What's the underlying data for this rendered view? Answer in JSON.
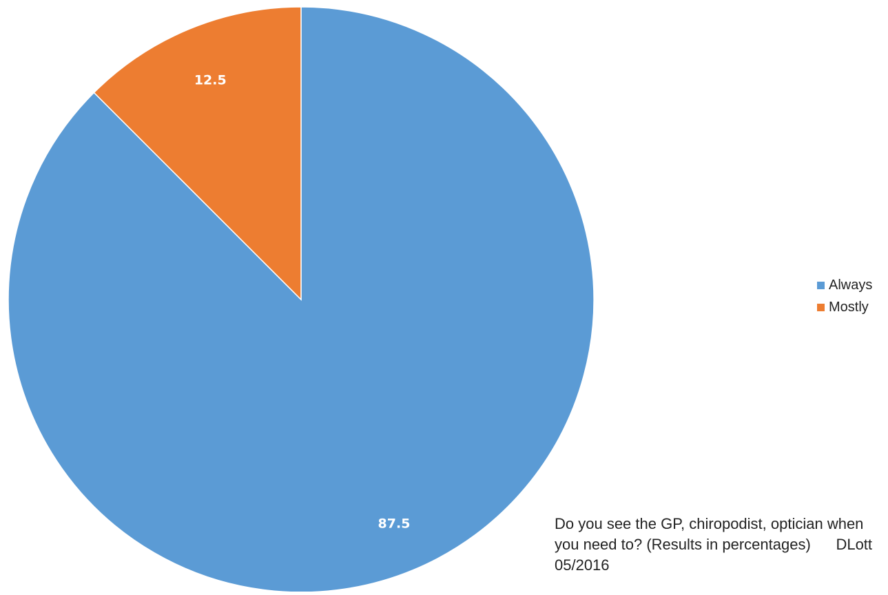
{
  "chart_data": {
    "type": "pie",
    "categories": [
      "Always",
      "Mostly"
    ],
    "values": [
      87.5,
      12.5
    ],
    "colors": [
      "#5B9BD5",
      "#ED7D31"
    ],
    "data_labels": [
      "87.5",
      "12.5"
    ],
    "legend_position": "right",
    "start_angle": "12 o'clock, clockwise"
  },
  "caption": "Do you see the GP, chiropodist, optician when you need to? (Results in percentages)      DLott 05/2016"
}
